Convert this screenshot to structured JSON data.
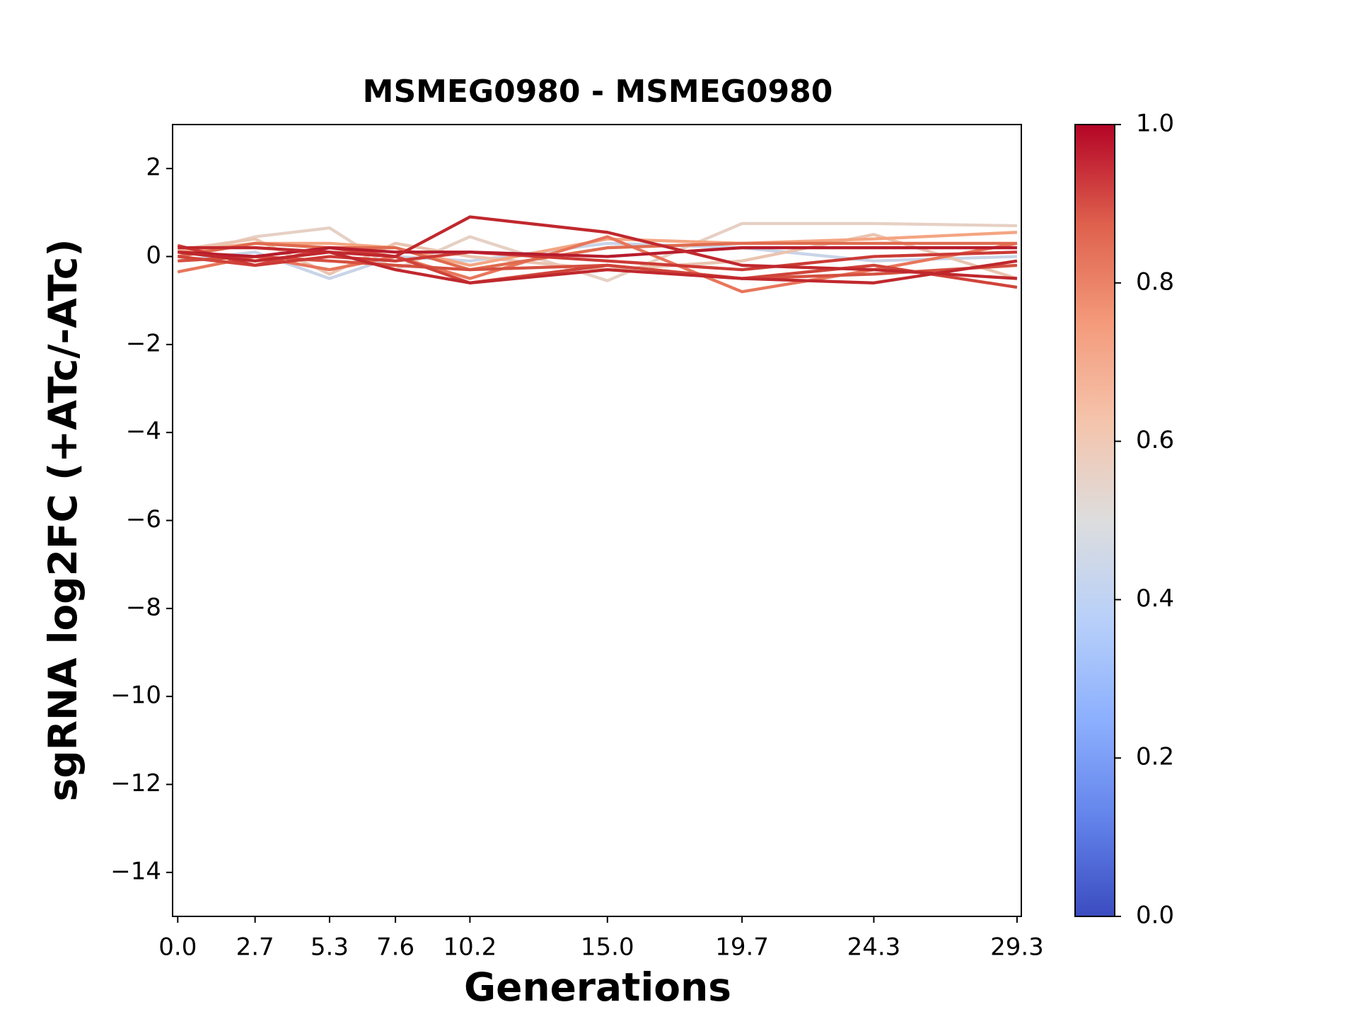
{
  "chart_data": {
    "type": "line",
    "title": "MSMEG0980 - MSMEG0980",
    "x_label": "Generations",
    "y_label": "sgRNA log2FC (+ATc/-ATc)",
    "x": [
      0.0,
      2.7,
      5.3,
      7.6,
      10.2,
      15.0,
      19.7,
      24.3,
      29.3
    ],
    "xlim": [
      -0.18,
      29.45
    ],
    "xticks": [
      {
        "value": 0,
        "label": "0.0"
      },
      2.7,
      5.3,
      7.6,
      10.2,
      {
        "value": 15,
        "label": "15.0"
      },
      19.7,
      24.3,
      29.3
    ],
    "ylim": [
      -15,
      3
    ],
    "yticks": [
      {
        "value": -14,
        "label": "−14"
      },
      {
        "value": -12,
        "label": "−12"
      },
      {
        "value": -10,
        "label": "−10"
      },
      {
        "value": -8,
        "label": "−8"
      },
      {
        "value": -6,
        "label": "−6"
      },
      {
        "value": -4,
        "label": "−4"
      },
      {
        "value": -2,
        "label": "−2"
      },
      0,
      2
    ],
    "grid": false,
    "series": [
      {
        "color": "#c9d4e8",
        "values": [
          -0.1,
          0.1,
          -0.5,
          0.0,
          -0.1,
          0.3,
          0.2,
          -0.1,
          0.0
        ]
      },
      {
        "color": "#e6d0c4",
        "values": [
          0.0,
          0.45,
          0.65,
          -0.3,
          0.45,
          -0.55,
          0.75,
          0.75,
          0.7
        ]
      },
      {
        "color": "#eac4b0",
        "values": [
          0.15,
          0.4,
          -0.4,
          0.3,
          0.0,
          -0.3,
          -0.1,
          0.5,
          -0.5
        ]
      },
      {
        "color": "#f4a582",
        "values": [
          0.1,
          0.3,
          0.3,
          0.2,
          -0.2,
          0.4,
          0.3,
          0.4,
          0.55
        ]
      },
      {
        "color": "#e8765b",
        "values": [
          -0.35,
          0.0,
          -0.3,
          0.0,
          -0.5,
          0.45,
          -0.8,
          -0.3,
          0.3
        ]
      },
      {
        "color": "#e06b4f",
        "values": [
          0.0,
          0.3,
          0.2,
          0.2,
          -0.3,
          0.2,
          0.3,
          0.3,
          0.3
        ]
      },
      {
        "color": "#d55040",
        "values": [
          -0.1,
          0.0,
          -0.1,
          -0.2,
          -0.3,
          -0.2,
          -0.5,
          -0.4,
          -0.2
        ]
      },
      {
        "color": "#d0443a",
        "values": [
          0.0,
          -0.2,
          0.2,
          0.0,
          -0.6,
          -0.2,
          -0.5,
          -0.2,
          -0.7
        ]
      },
      {
        "color": "#cc3a35",
        "values": [
          0.25,
          -0.2,
          0.0,
          -0.1,
          0.1,
          -0.1,
          -0.3,
          0.0,
          0.1
        ]
      },
      {
        "color": "#b71c2c",
        "values": [
          0.1,
          0.0,
          0.2,
          0.1,
          0.1,
          0.0,
          0.2,
          0.2,
          0.2
        ]
      },
      {
        "color": "#c0282d",
        "values": [
          0.2,
          0.2,
          0.1,
          -0.3,
          -0.6,
          -0.3,
          -0.5,
          -0.6,
          -0.1
        ]
      },
      {
        "color": "#c0282d",
        "values": [
          0.1,
          -0.1,
          0.1,
          0.0,
          0.9,
          0.55,
          -0.2,
          -0.3,
          -0.5
        ]
      }
    ],
    "colorbar": {
      "lim": [
        0,
        1
      ],
      "ticks": [
        {
          "value": 0,
          "label": "0.0"
        },
        {
          "value": 0.2,
          "label": "0.2"
        },
        {
          "value": 0.4,
          "label": "0.4"
        },
        {
          "value": 0.6,
          "label": "0.6"
        },
        {
          "value": 0.8,
          "label": "0.8"
        },
        {
          "value": 1,
          "label": "1.0"
        }
      ],
      "colors": [
        "#3b4cc0",
        "#6384eb",
        "#8db0fe",
        "#b8d0f9",
        "#dddddd",
        "#f5c4ac",
        "#f49a7b",
        "#de604d",
        "#b40426"
      ]
    }
  }
}
